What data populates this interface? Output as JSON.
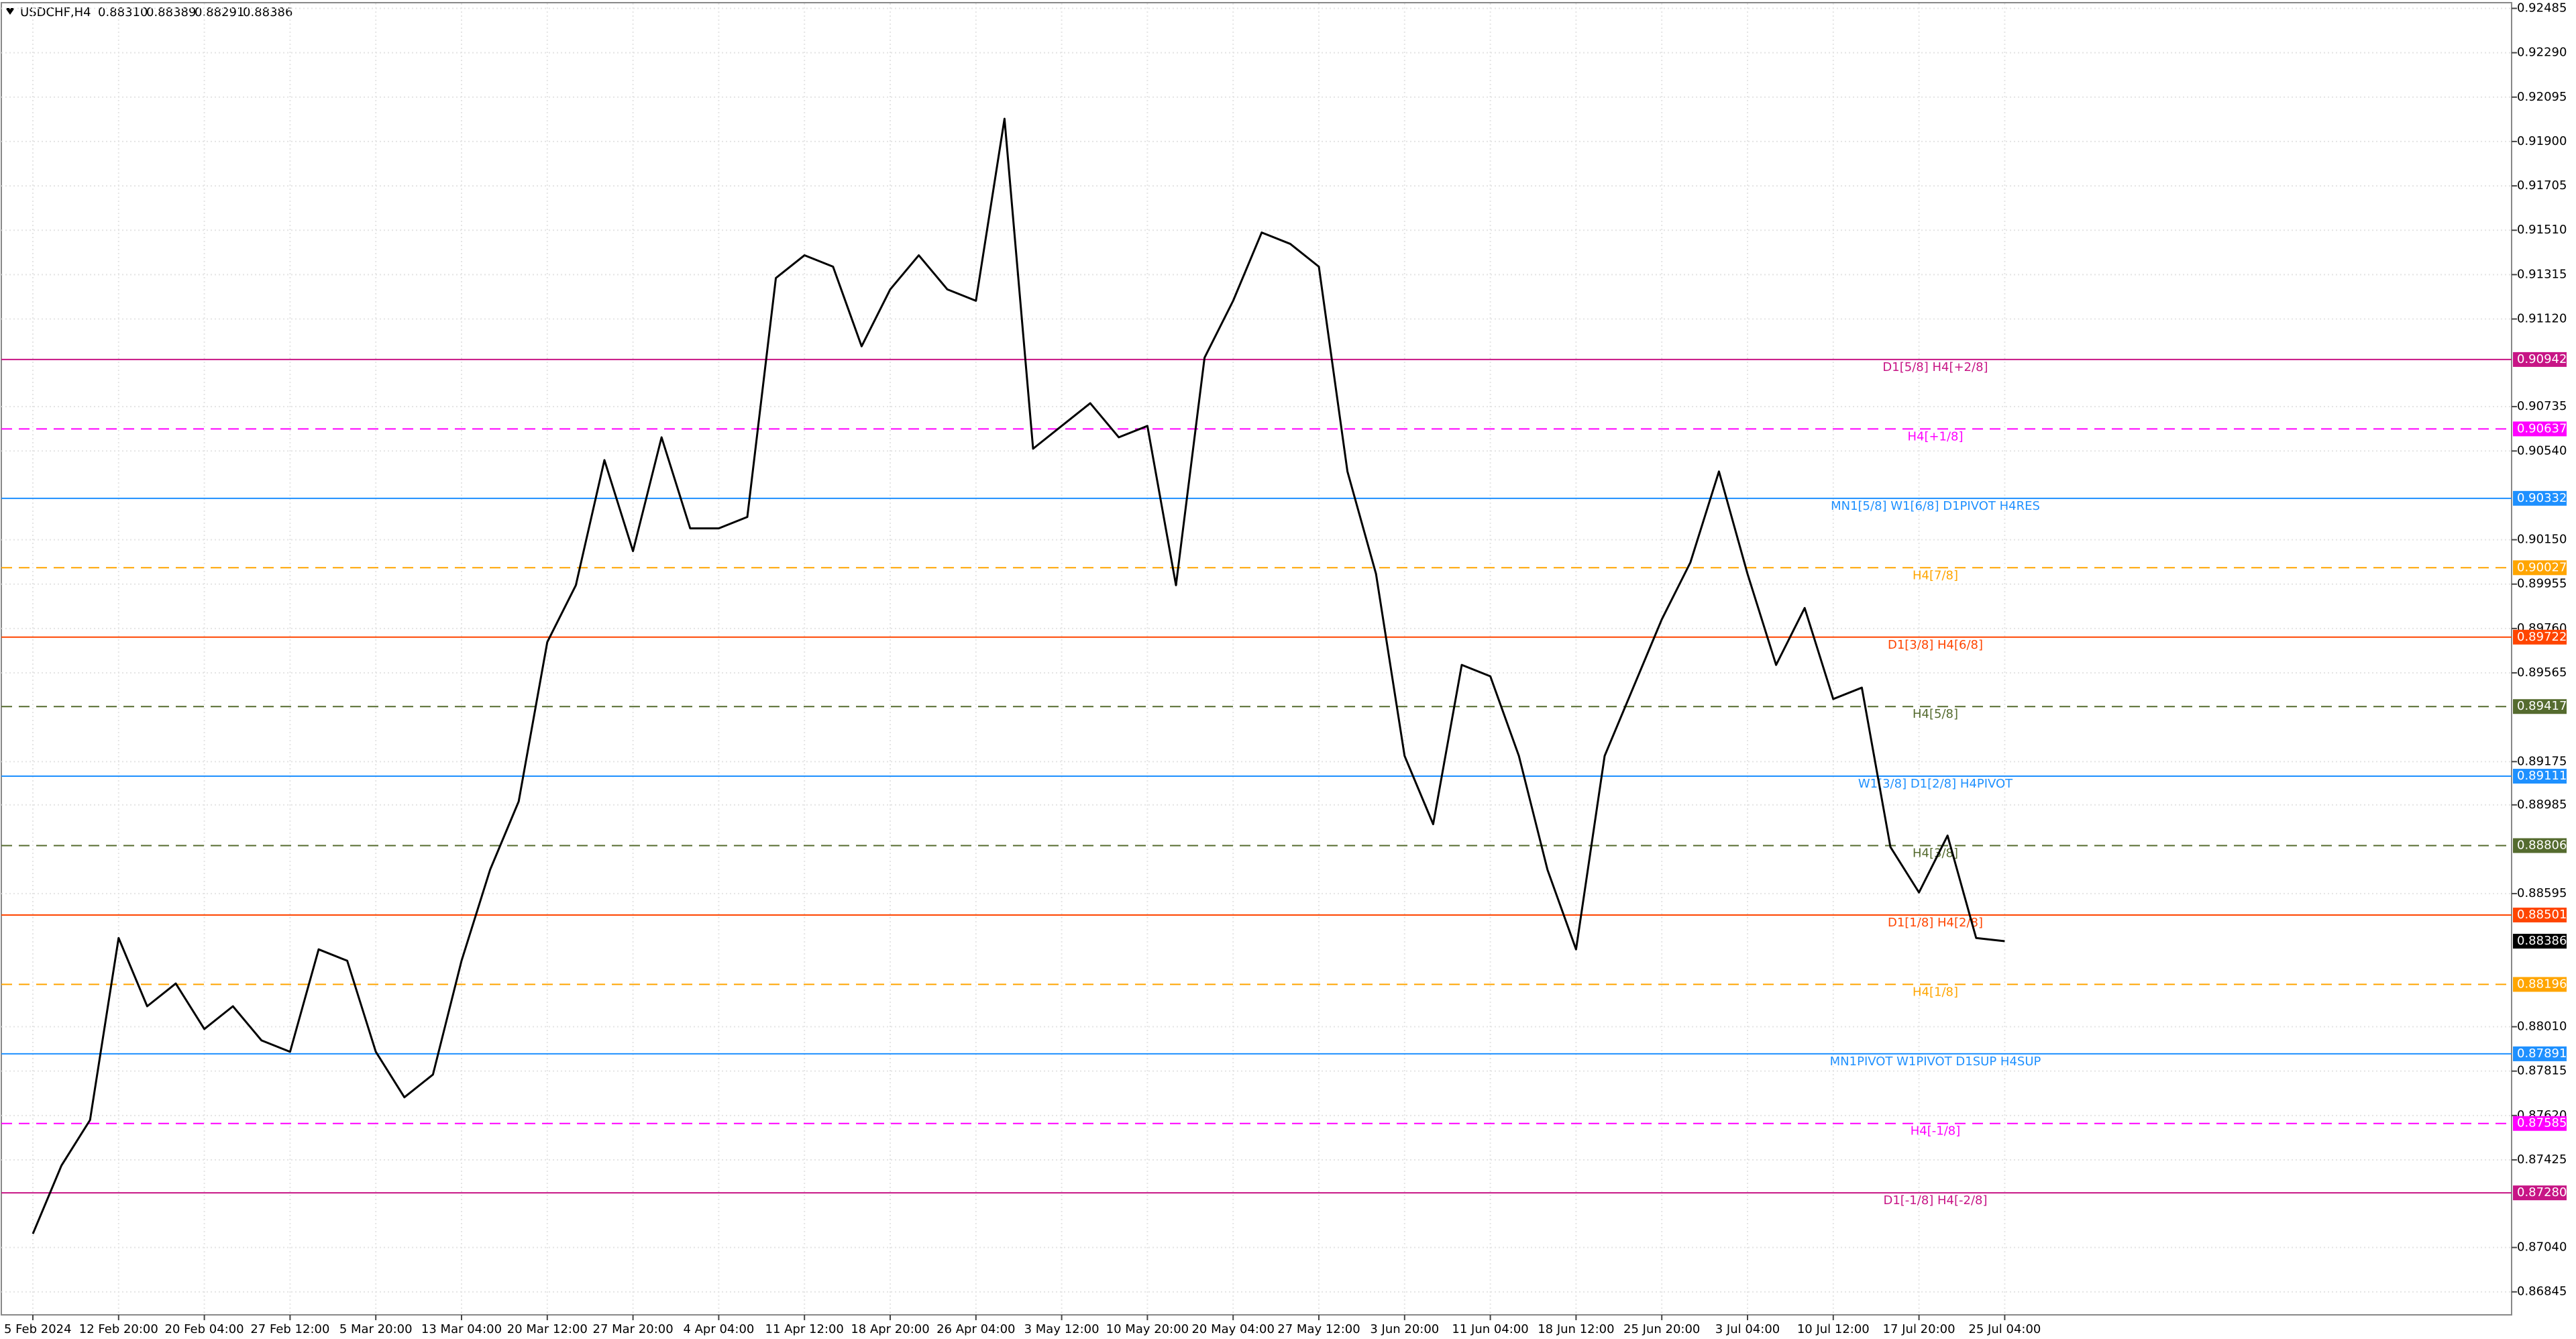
{
  "chart_data": {
    "type": "line",
    "title": "USDCHF,H4",
    "ohlc": [
      {
        "value": 0.8831,
        "label": "0.88310"
      },
      0.88389,
      0.88291,
      0.88386
    ],
    "categories": [
      "5 Feb 2024",
      null,
      null,
      "12 Feb 20:00",
      null,
      null,
      "20 Feb 04:00",
      null,
      null,
      "27 Feb 12:00",
      null,
      null,
      "5 Mar 20:00",
      null,
      null,
      "13 Mar 04:00",
      null,
      null,
      "20 Mar 12:00",
      null,
      null,
      "27 Mar 20:00",
      null,
      null,
      "4 Apr 04:00",
      null,
      null,
      "11 Apr 12:00",
      null,
      null,
      "18 Apr 20:00",
      null,
      null,
      "26 Apr 04:00",
      null,
      null,
      "3 May 12:00",
      null,
      null,
      "10 May 20:00",
      null,
      null,
      "20 May 04:00",
      null,
      null,
      "27 May 12:00",
      null,
      null,
      "3 Jun 20:00",
      null,
      null,
      "11 Jun 04:00",
      null,
      null,
      "18 Jun 12:00",
      null,
      null,
      "25 Jun 20:00",
      null,
      null,
      "3 Jul 04:00",
      null,
      null,
      "10 Jul 12:00",
      null,
      null,
      "17 Jul 20:00",
      null,
      null,
      "25 Jul 04:00"
    ],
    "values": [
      0.871,
      0.874,
      0.876,
      0.884,
      0.881,
      0.882,
      0.88,
      0.881,
      0.8795,
      0.879,
      0.8835,
      0.883,
      0.879,
      0.877,
      0.878,
      0.883,
      0.887,
      0.89,
      0.897,
      0.8995,
      0.905,
      0.901,
      0.906,
      0.902,
      0.902,
      0.9025,
      0.913,
      0.914,
      0.9135,
      0.91,
      0.9125,
      0.914,
      0.9125,
      0.912,
      0.92,
      0.9055,
      0.9065,
      0.9075,
      0.906,
      0.9065,
      0.8995,
      0.9095,
      0.912,
      0.915,
      0.9145,
      0.9135,
      0.9045,
      0.9,
      0.892,
      0.889,
      0.896,
      0.8955,
      0.892,
      0.887,
      0.8835,
      0.892,
      0.895,
      0.898,
      0.9005,
      0.9045,
      0.9,
      0.896,
      0.8985,
      0.8945,
      0.895,
      0.888,
      0.886,
      0.8885,
      0.884,
      0.88386
    ],
    "color": "#000000",
    "ylim": [
      0.86744,
      0.92507
    ],
    "yticks": [
      0.92485,
      {
        "value": 0.9229,
        "label": "0.92290"
      },
      0.92095,
      {
        "value": 0.919,
        "label": "0.91900"
      },
      0.91705,
      {
        "value": 0.9151,
        "label": "0.91510"
      },
      0.91315,
      {
        "value": 0.9112,
        "label": "0.91120"
      },
      0.90735,
      {
        "value": 0.9054,
        "label": "0.90540"
      },
      {
        "value": 0.9015,
        "label": "0.90150"
      },
      0.89955,
      {
        "value": 0.8976,
        "label": "0.89760"
      },
      0.89565,
      0.89175,
      0.88985,
      0.88595,
      {
        "value": 0.8801,
        "label": "0.88010"
      },
      0.87815,
      {
        "value": 0.8762,
        "label": "0.87620"
      },
      0.87425,
      {
        "value": 0.8704,
        "label": "0.87040"
      },
      0.86845
    ],
    "grid": true,
    "levels": [
      {
        "value": 0.90942,
        "text": "D1[5/8] H4[+2/8]",
        "color": "#c71585",
        "style": "solid"
      },
      {
        "value": 0.90637,
        "text": "H4[+1/8]",
        "color": "#ff00ff",
        "style": "dashed"
      },
      {
        "value": 0.90332,
        "text": "MN1[5/8] W1[6/8] D1PIVOT H4RES",
        "color": "#1e90ff",
        "style": "solid"
      },
      {
        "value": 0.90027,
        "text": "H4[7/8]",
        "color": "#ffa500",
        "style": "dashed"
      },
      {
        "value": 0.89722,
        "text": "D1[3/8] H4[6/8]",
        "color": "#ff4500",
        "style": "solid"
      },
      {
        "value": 0.89417,
        "text": "H4[5/8]",
        "color": "#556b2f",
        "style": "dashed"
      },
      {
        "value": 0.89111,
        "text": "W1[3/8] D1[2/8] H4PIVOT",
        "color": "#1e90ff",
        "style": "solid"
      },
      {
        "value": 0.88806,
        "text": "H4[3/8]",
        "color": "#556b2f",
        "style": "dashed"
      },
      {
        "value": 0.88501,
        "text": "D1[1/8] H4[2/8]",
        "color": "#ff4500",
        "style": "solid"
      },
      {
        "value": 0.88196,
        "text": "H4[1/8]",
        "color": "#ffa500",
        "style": "dashed"
      },
      {
        "value": 0.87891,
        "text": "MN1PIVOT W1PIVOT D1SUP H4SUP",
        "color": "#1e90ff",
        "style": "solid"
      },
      {
        "value": 0.87585,
        "text": "H4[-1/8]",
        "color": "#ff00ff",
        "style": "dashed"
      },
      {
        "value": 0.8728,
        "label": "0.87280",
        "text": "D1[-1/8] H4[-2/8]",
        "color": "#c71585",
        "style": "solid"
      }
    ],
    "current": 0.88386
  }
}
